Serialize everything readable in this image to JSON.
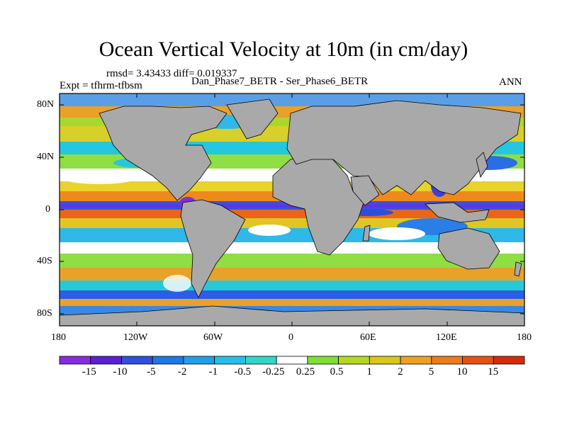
{
  "title": "Ocean Vertical Velocity at 10m (in cm/day)",
  "stats": "rmsd= 3.43433  diff= 0.019337",
  "experiment": "Expt = tfhrm-tfbsm",
  "runs": "Dan_Phase7_BETR - Ser_Phase6_BETR",
  "season": "ANN",
  "y_ticks": [
    "80N",
    "40N",
    "0",
    "40S",
    "80S"
  ],
  "x_ticks": [
    "180",
    "120W",
    "60W",
    "0",
    "60E",
    "120E",
    "180"
  ],
  "colorbar": {
    "labels": [
      "-15",
      "-10",
      "-5",
      "-2",
      "-1",
      "-0.5",
      "-0.25",
      "0.25",
      "0.5",
      "1",
      "2",
      "5",
      "10",
      "15"
    ],
    "colors": [
      "#8a2be2",
      "#5a1fd6",
      "#2f4fe0",
      "#1e78e6",
      "#1fa0ea",
      "#22c0ea",
      "#2ed8c8",
      "#ffffff",
      "#7fe030",
      "#b4d820",
      "#d8c818",
      "#f0a020",
      "#ee7a18",
      "#e85010",
      "#d82a0a"
    ]
  },
  "colors": {
    "land": "#a9a9a9",
    "background_ocean": "#a8d830"
  }
}
